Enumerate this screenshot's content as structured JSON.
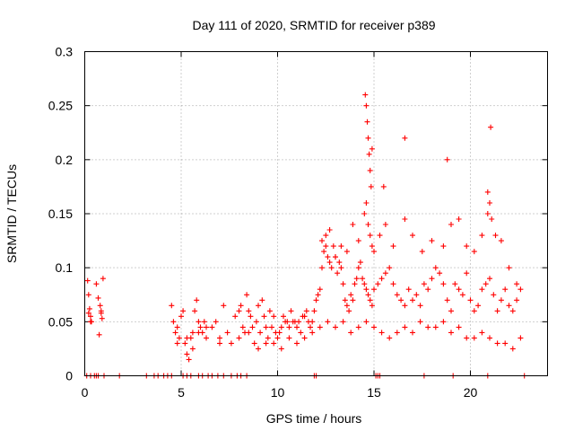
{
  "chart_data": {
    "type": "scatter",
    "title": "Day 111 of 2020, SRMTID for receiver p389",
    "xlabel": "GPS time / hours",
    "ylabel": "SRMTID / TECUs",
    "xlim": [
      0,
      24
    ],
    "ylim": [
      0,
      0.3
    ],
    "xticks": [
      0,
      5,
      10,
      15,
      20
    ],
    "xtick_labels": [
      "0",
      "5",
      "10",
      "15",
      "20"
    ],
    "yticks": [
      0,
      0.05,
      0.1,
      0.15,
      0.2,
      0.25,
      0.3
    ],
    "ytick_labels": [
      "0",
      "0.05",
      "0.1",
      "0.15",
      "0.2",
      "0.25",
      "0.3"
    ],
    "grid": true,
    "marker": "+",
    "color": "#ff0000",
    "series": [
      {
        "name": "SRMTID",
        "x": [
          0.15,
          0.2,
          0.25,
          0.3,
          0.35,
          0.6,
          0.7,
          0.8,
          0.85,
          0.9,
          0.95,
          0.2,
          0.3,
          0.75,
          0.85,
          4.5,
          4.6,
          4.7,
          4.8,
          4.9,
          5.0,
          5.1,
          5.2,
          5.3,
          5.4,
          5.5,
          5.6,
          5.7,
          5.8,
          5.9,
          6.0,
          6.1,
          6.2,
          6.3,
          6.6,
          6.8,
          7.0,
          7.2,
          7.4,
          7.6,
          7.8,
          8.0,
          8.1,
          8.2,
          8.3,
          8.4,
          8.5,
          8.6,
          8.7,
          8.8,
          8.9,
          9.0,
          9.1,
          9.2,
          9.3,
          9.4,
          9.5,
          9.6,
          9.7,
          9.8,
          9.9,
          10.0,
          10.1,
          10.2,
          10.3,
          10.4,
          10.5,
          10.6,
          10.7,
          10.8,
          10.9,
          11.0,
          11.1,
          11.2,
          11.3,
          11.4,
          11.5,
          11.6,
          11.7,
          11.8,
          11.9,
          12.0,
          12.1,
          12.2,
          12.3,
          12.4,
          12.5,
          12.6,
          12.7,
          12.8,
          12.9,
          13.0,
          13.1,
          13.2,
          13.3,
          13.4,
          13.5,
          13.6,
          13.7,
          13.8,
          13.9,
          14.0,
          14.1,
          14.2,
          14.3,
          14.4,
          14.5,
          14.6,
          14.7,
          14.8,
          14.9,
          15.0,
          15.2,
          15.4,
          15.6,
          15.8,
          16.0,
          16.2,
          16.4,
          16.6,
          16.8,
          17.0,
          17.2,
          17.4,
          17.6,
          17.8,
          18.0,
          18.2,
          18.4,
          18.6,
          18.8,
          19.0,
          19.2,
          19.4,
          19.6,
          19.8,
          20.0,
          20.2,
          20.4,
          20.6,
          20.8,
          21.0,
          21.2,
          21.4,
          21.6,
          21.8,
          22.0,
          22.2,
          22.4,
          22.6,
          12.3,
          12.5,
          12.7,
          13.0,
          13.3,
          13.6,
          13.9,
          14.2,
          14.5,
          14.6,
          14.7,
          14.8,
          14.9,
          15.0,
          15.3,
          15.6,
          16.0,
          16.6,
          17.0,
          17.5,
          18.0,
          18.6,
          19.0,
          19.4,
          19.8,
          20.2,
          20.6,
          20.9,
          21.0,
          21.1,
          21.3,
          21.6,
          22.0,
          22.4,
          14.55,
          14.6,
          14.65,
          14.7,
          14.75,
          14.8,
          14.85,
          14.9,
          15.5,
          16.6,
          18.8,
          20.9,
          21.05,
          4.8,
          5.3,
          5.6,
          5.9,
          6.3,
          7.0,
          8.0,
          8.5,
          9.0,
          9.4,
          9.8,
          10.2,
          10.6,
          11.0,
          11.4,
          11.8,
          12.2,
          12.6,
          13.0,
          13.4,
          13.8,
          14.2,
          14.6,
          15.0,
          15.4,
          15.8,
          16.2,
          16.6,
          17.0,
          17.4,
          17.8,
          18.2,
          18.6,
          19.0,
          19.4,
          19.8,
          20.2,
          20.6,
          21.0,
          21.4,
          21.8,
          22.2,
          22.6,
          0.1,
          0.3,
          0.5,
          0.6,
          0.7,
          1.0,
          1.8,
          3.2,
          3.6,
          3.8,
          4.1,
          4.3,
          4.5,
          5.1,
          5.3,
          5.5,
          5.9,
          6.1,
          6.4,
          6.6,
          6.9,
          7.2,
          7.6,
          7.9,
          8.1,
          8.4,
          11.9,
          12.0,
          15.1,
          15.2,
          15.3,
          17.6,
          19.1,
          20.9,
          22.8
        ],
        "y": [
          0.088,
          0.075,
          0.062,
          0.055,
          0.05,
          0.085,
          0.072,
          0.065,
          0.058,
          0.053,
          0.09,
          0.058,
          0.05,
          0.038,
          0.06,
          0.065,
          0.05,
          0.04,
          0.045,
          0.035,
          0.055,
          0.06,
          0.03,
          0.02,
          0.015,
          0.035,
          0.04,
          0.06,
          0.07,
          0.05,
          0.045,
          0.04,
          0.05,
          0.045,
          0.045,
          0.05,
          0.035,
          0.065,
          0.04,
          0.03,
          0.055,
          0.06,
          0.065,
          0.045,
          0.04,
          0.075,
          0.06,
          0.055,
          0.045,
          0.03,
          0.05,
          0.065,
          0.04,
          0.07,
          0.055,
          0.045,
          0.035,
          0.06,
          0.045,
          0.055,
          0.04,
          0.035,
          0.04,
          0.045,
          0.055,
          0.05,
          0.05,
          0.045,
          0.06,
          0.05,
          0.05,
          0.045,
          0.05,
          0.04,
          0.055,
          0.055,
          0.06,
          0.05,
          0.045,
          0.05,
          0.06,
          0.07,
          0.075,
          0.08,
          0.1,
          0.115,
          0.12,
          0.11,
          0.105,
          0.1,
          0.12,
          0.11,
          0.095,
          0.105,
          0.1,
          0.085,
          0.07,
          0.065,
          0.06,
          0.075,
          0.07,
          0.085,
          0.09,
          0.1,
          0.105,
          0.09,
          0.085,
          0.08,
          0.075,
          0.07,
          0.065,
          0.08,
          0.085,
          0.09,
          0.095,
          0.1,
          0.085,
          0.075,
          0.07,
          0.065,
          0.08,
          0.07,
          0.075,
          0.065,
          0.085,
          0.08,
          0.09,
          0.1,
          0.095,
          0.085,
          0.07,
          0.06,
          0.085,
          0.08,
          0.075,
          0.095,
          0.07,
          0.06,
          0.065,
          0.08,
          0.085,
          0.09,
          0.075,
          0.06,
          0.07,
          0.08,
          0.065,
          0.06,
          0.07,
          0.08,
          0.125,
          0.13,
          0.135,
          0.11,
          0.12,
          0.115,
          0.14,
          0.125,
          0.15,
          0.16,
          0.14,
          0.13,
          0.12,
          0.115,
          0.13,
          0.14,
          0.12,
          0.145,
          0.13,
          0.115,
          0.125,
          0.12,
          0.14,
          0.145,
          0.12,
          0.115,
          0.13,
          0.15,
          0.16,
          0.145,
          0.13,
          0.125,
          0.1,
          0.085,
          0.26,
          0.25,
          0.235,
          0.22,
          0.205,
          0.19,
          0.175,
          0.21,
          0.175,
          0.22,
          0.2,
          0.17,
          0.23,
          0.03,
          0.035,
          0.025,
          0.04,
          0.035,
          0.03,
          0.035,
          0.04,
          0.025,
          0.03,
          0.03,
          0.025,
          0.035,
          0.03,
          0.035,
          0.04,
          0.045,
          0.05,
          0.045,
          0.05,
          0.04,
          0.045,
          0.05,
          0.045,
          0.04,
          0.035,
          0.04,
          0.045,
          0.04,
          0.05,
          0.045,
          0.045,
          0.05,
          0.04,
          0.045,
          0.035,
          0.035,
          0.04,
          0.035,
          0.03,
          0.03,
          0.025,
          0.035,
          0,
          0,
          0,
          0,
          0,
          0,
          0,
          0,
          0,
          0,
          0,
          0,
          0,
          0,
          0,
          0,
          0,
          0,
          0,
          0,
          0,
          0,
          0,
          0,
          0,
          0,
          0,
          0,
          0,
          0,
          0,
          0,
          0,
          0,
          0
        ]
      }
    ]
  }
}
